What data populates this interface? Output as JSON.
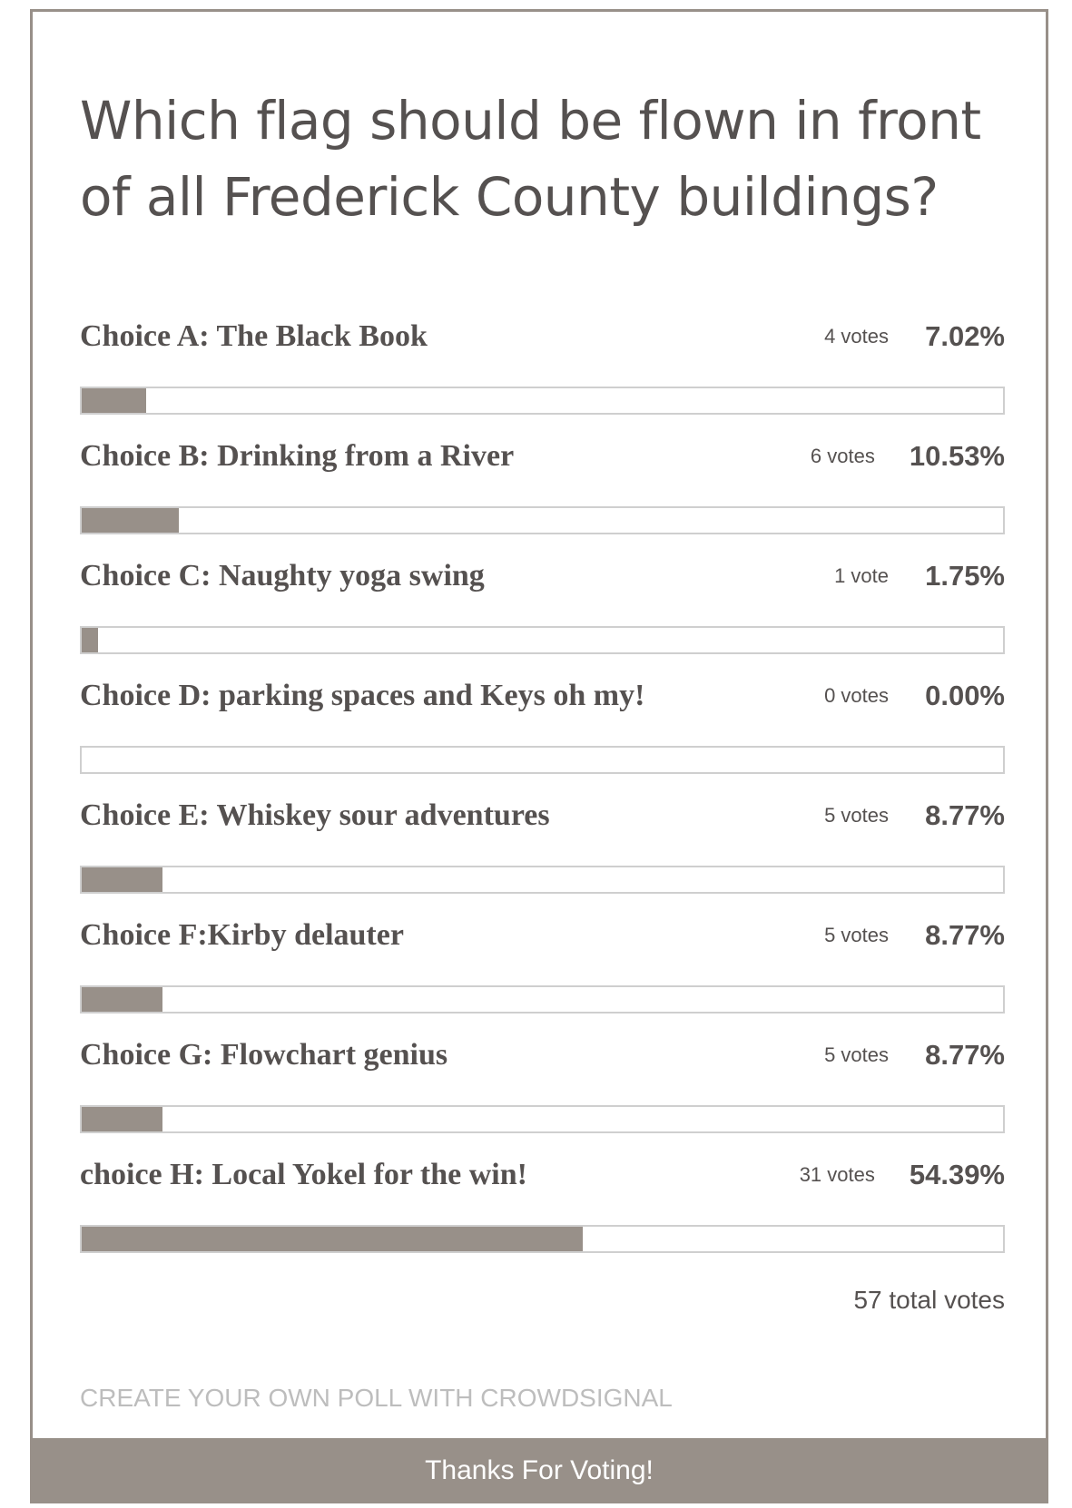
{
  "poll": {
    "question": "Which flag should be flown in front of all Frederick County buildings?",
    "choices": [
      {
        "label": "Choice A: The Black Book",
        "votes": "4 votes",
        "percent": "7.02%",
        "fraction": 0.0702
      },
      {
        "label": "Choice B: Drinking from a River",
        "votes": "6 votes",
        "percent": "10.53%",
        "fraction": 0.1053
      },
      {
        "label": "Choice C: Naughty yoga swing",
        "votes": "1 vote",
        "percent": "1.75%",
        "fraction": 0.0175
      },
      {
        "label": "Choice D: parking spaces and Keys oh my!",
        "votes": "0 votes",
        "percent": "0.00%",
        "fraction": 0
      },
      {
        "label": "Choice E: Whiskey sour adventures",
        "votes": "5 votes",
        "percent": "8.77%",
        "fraction": 0.0877
      },
      {
        "label": "Choice F:Kirby delauter",
        "votes": "5 votes",
        "percent": "8.77%",
        "fraction": 0.0877
      },
      {
        "label": "Choice G: Flowchart genius",
        "votes": "5 votes",
        "percent": "8.77%",
        "fraction": 0.0877
      },
      {
        "label": "choice H: Local Yokel for the win!",
        "votes": "31 votes",
        "percent": "54.39%",
        "fraction": 0.5439
      }
    ],
    "total_votes": "57 total votes",
    "brand_link": "CREATE YOUR OWN POLL WITH CROWDSIGNAL",
    "footer_message": "Thanks For Voting!"
  },
  "colors": {
    "text": "#555150",
    "bar_fill": "#989089",
    "bar_border": "#cfcfcf",
    "frame": "#989089",
    "brand": "#bdbdbd"
  }
}
